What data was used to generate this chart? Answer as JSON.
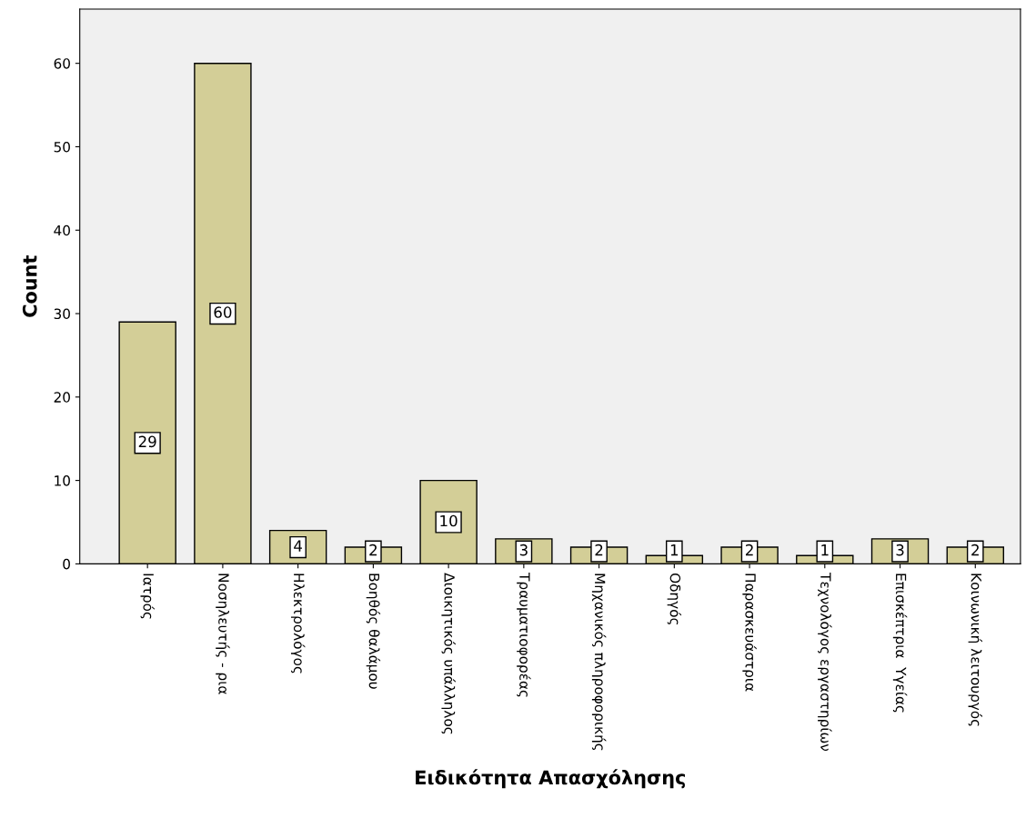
{
  "chart_data": {
    "type": "bar",
    "xlabel": "Ειδικότητα Απασχόλησης",
    "ylabel": "Count",
    "categories": [
      "Ιατρός",
      "Νοσηλευτής - ρια",
      "Ηλεκτρολόγος",
      "Βοηθός θαλάμου",
      "Διοικητικός υπάλληλος",
      "Τραυματιοφορέας",
      "Μηχανικός πληροφορικής",
      "Οδηγός",
      "Παρασκευάστρια",
      "Τεχνολόγος εργαστηρίων",
      "Επισκέπτρια  Υγείας",
      "Κοινωνική λειτουργός"
    ],
    "values": [
      29,
      60,
      4,
      2,
      10,
      3,
      2,
      1,
      2,
      1,
      3,
      2
    ],
    "color": "#d3ce97",
    "ylim": [
      0,
      66.5
    ],
    "yticks": [
      0,
      10,
      20,
      30,
      40,
      50,
      60
    ],
    "grid": false,
    "data_labels": true
  }
}
